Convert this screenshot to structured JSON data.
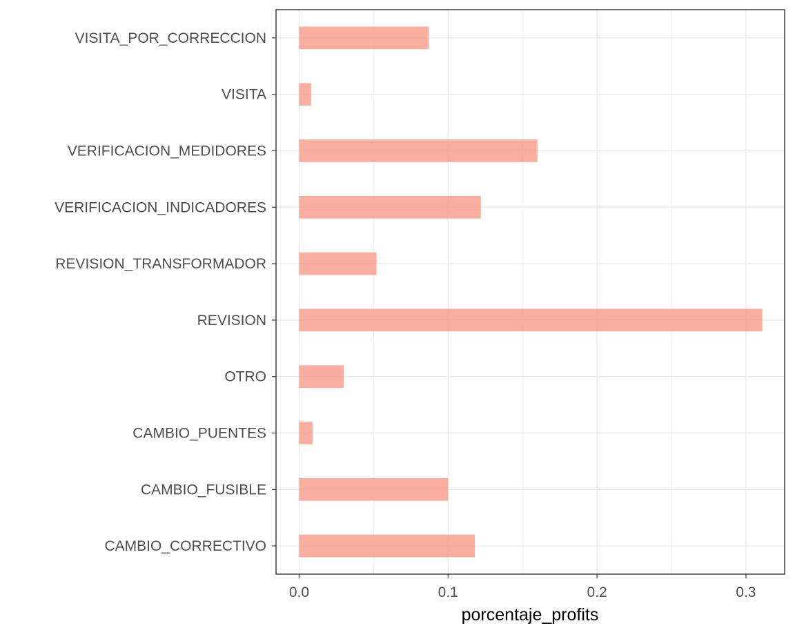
{
  "chart_data": {
    "type": "bar",
    "orientation": "horizontal",
    "categories": [
      "CAMBIO_CORRECTIVO",
      "CAMBIO_FUSIBLE",
      "CAMBIO_PUENTES",
      "OTRO",
      "REVISION",
      "REVISION_TRANSFORMADOR",
      "VERIFICACION_INDICADORES",
      "VERIFICACION_MEDIDORES",
      "VISITA",
      "VISITA_POR_CORRECCION"
    ],
    "values": [
      0.118,
      0.1,
      0.009,
      0.03,
      0.311,
      0.052,
      0.122,
      0.16,
      0.008,
      0.087
    ],
    "xlabel": "porcentaje_profits",
    "ylabel": "",
    "title": "",
    "xlim": [
      -0.0155,
      0.326
    ],
    "xticks": [
      0.0,
      0.1,
      0.2,
      0.3
    ],
    "xtick_labels": [
      "0.0",
      "0.1",
      "0.2",
      "0.3"
    ],
    "grid": true,
    "bar_color": "#f8a08e",
    "panel_border_color": "#333333",
    "grid_color": "#ebebeb"
  }
}
